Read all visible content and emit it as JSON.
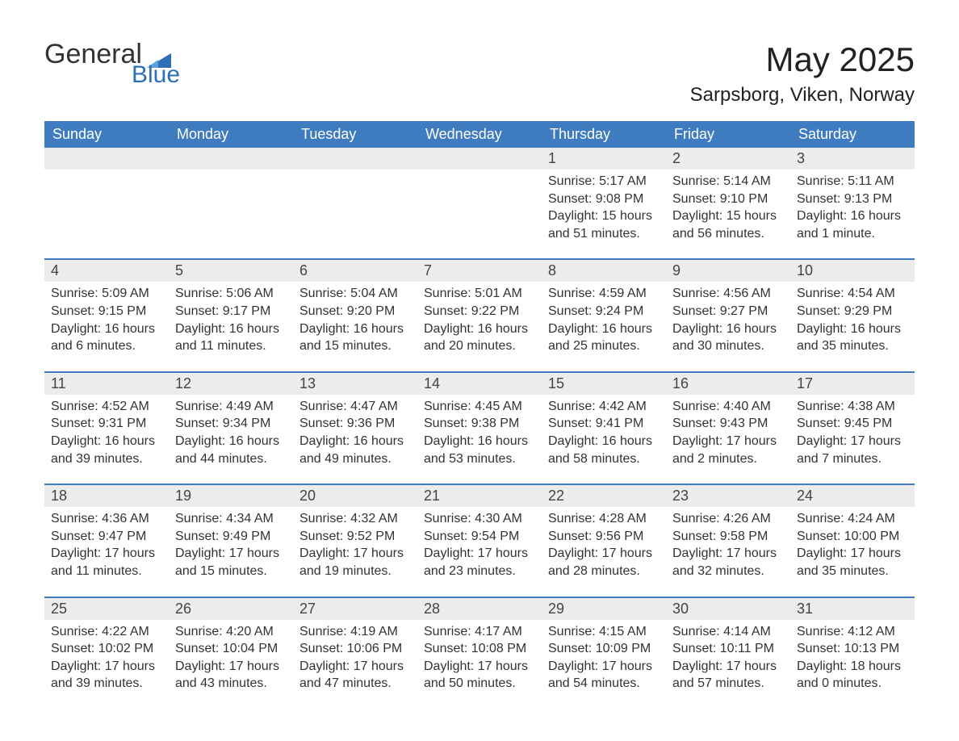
{
  "colors": {
    "header_blue": "#3f7bbf",
    "row_border_blue": "#3f7bbf",
    "day_bg": "#ececec",
    "text_dark": "#333333",
    "logo_blue": "#2f6fb5",
    "background": "#ffffff"
  },
  "logo": {
    "line1": "General",
    "line2": "Blue"
  },
  "title": {
    "month": "May 2025",
    "location": "Sarpsborg, Viken, Norway"
  },
  "weekdays": [
    "Sunday",
    "Monday",
    "Tuesday",
    "Wednesday",
    "Thursday",
    "Friday",
    "Saturday"
  ],
  "layout": {
    "first_weekday_index": 4,
    "rows": 5,
    "cols": 7
  },
  "days": [
    {
      "n": 1,
      "sunrise": "Sunrise: 5:17 AM",
      "sunset": "Sunset: 9:08 PM",
      "daylight": "Daylight: 15 hours and 51 minutes."
    },
    {
      "n": 2,
      "sunrise": "Sunrise: 5:14 AM",
      "sunset": "Sunset: 9:10 PM",
      "daylight": "Daylight: 15 hours and 56 minutes."
    },
    {
      "n": 3,
      "sunrise": "Sunrise: 5:11 AM",
      "sunset": "Sunset: 9:13 PM",
      "daylight": "Daylight: 16 hours and 1 minute."
    },
    {
      "n": 4,
      "sunrise": "Sunrise: 5:09 AM",
      "sunset": "Sunset: 9:15 PM",
      "daylight": "Daylight: 16 hours and 6 minutes."
    },
    {
      "n": 5,
      "sunrise": "Sunrise: 5:06 AM",
      "sunset": "Sunset: 9:17 PM",
      "daylight": "Daylight: 16 hours and 11 minutes."
    },
    {
      "n": 6,
      "sunrise": "Sunrise: 5:04 AM",
      "sunset": "Sunset: 9:20 PM",
      "daylight": "Daylight: 16 hours and 15 minutes."
    },
    {
      "n": 7,
      "sunrise": "Sunrise: 5:01 AM",
      "sunset": "Sunset: 9:22 PM",
      "daylight": "Daylight: 16 hours and 20 minutes."
    },
    {
      "n": 8,
      "sunrise": "Sunrise: 4:59 AM",
      "sunset": "Sunset: 9:24 PM",
      "daylight": "Daylight: 16 hours and 25 minutes."
    },
    {
      "n": 9,
      "sunrise": "Sunrise: 4:56 AM",
      "sunset": "Sunset: 9:27 PM",
      "daylight": "Daylight: 16 hours and 30 minutes."
    },
    {
      "n": 10,
      "sunrise": "Sunrise: 4:54 AM",
      "sunset": "Sunset: 9:29 PM",
      "daylight": "Daylight: 16 hours and 35 minutes."
    },
    {
      "n": 11,
      "sunrise": "Sunrise: 4:52 AM",
      "sunset": "Sunset: 9:31 PM",
      "daylight": "Daylight: 16 hours and 39 minutes."
    },
    {
      "n": 12,
      "sunrise": "Sunrise: 4:49 AM",
      "sunset": "Sunset: 9:34 PM",
      "daylight": "Daylight: 16 hours and 44 minutes."
    },
    {
      "n": 13,
      "sunrise": "Sunrise: 4:47 AM",
      "sunset": "Sunset: 9:36 PM",
      "daylight": "Daylight: 16 hours and 49 minutes."
    },
    {
      "n": 14,
      "sunrise": "Sunrise: 4:45 AM",
      "sunset": "Sunset: 9:38 PM",
      "daylight": "Daylight: 16 hours and 53 minutes."
    },
    {
      "n": 15,
      "sunrise": "Sunrise: 4:42 AM",
      "sunset": "Sunset: 9:41 PM",
      "daylight": "Daylight: 16 hours and 58 minutes."
    },
    {
      "n": 16,
      "sunrise": "Sunrise: 4:40 AM",
      "sunset": "Sunset: 9:43 PM",
      "daylight": "Daylight: 17 hours and 2 minutes."
    },
    {
      "n": 17,
      "sunrise": "Sunrise: 4:38 AM",
      "sunset": "Sunset: 9:45 PM",
      "daylight": "Daylight: 17 hours and 7 minutes."
    },
    {
      "n": 18,
      "sunrise": "Sunrise: 4:36 AM",
      "sunset": "Sunset: 9:47 PM",
      "daylight": "Daylight: 17 hours and 11 minutes."
    },
    {
      "n": 19,
      "sunrise": "Sunrise: 4:34 AM",
      "sunset": "Sunset: 9:49 PM",
      "daylight": "Daylight: 17 hours and 15 minutes."
    },
    {
      "n": 20,
      "sunrise": "Sunrise: 4:32 AM",
      "sunset": "Sunset: 9:52 PM",
      "daylight": "Daylight: 17 hours and 19 minutes."
    },
    {
      "n": 21,
      "sunrise": "Sunrise: 4:30 AM",
      "sunset": "Sunset: 9:54 PM",
      "daylight": "Daylight: 17 hours and 23 minutes."
    },
    {
      "n": 22,
      "sunrise": "Sunrise: 4:28 AM",
      "sunset": "Sunset: 9:56 PM",
      "daylight": "Daylight: 17 hours and 28 minutes."
    },
    {
      "n": 23,
      "sunrise": "Sunrise: 4:26 AM",
      "sunset": "Sunset: 9:58 PM",
      "daylight": "Daylight: 17 hours and 32 minutes."
    },
    {
      "n": 24,
      "sunrise": "Sunrise: 4:24 AM",
      "sunset": "Sunset: 10:00 PM",
      "daylight": "Daylight: 17 hours and 35 minutes."
    },
    {
      "n": 25,
      "sunrise": "Sunrise: 4:22 AM",
      "sunset": "Sunset: 10:02 PM",
      "daylight": "Daylight: 17 hours and 39 minutes."
    },
    {
      "n": 26,
      "sunrise": "Sunrise: 4:20 AM",
      "sunset": "Sunset: 10:04 PM",
      "daylight": "Daylight: 17 hours and 43 minutes."
    },
    {
      "n": 27,
      "sunrise": "Sunrise: 4:19 AM",
      "sunset": "Sunset: 10:06 PM",
      "daylight": "Daylight: 17 hours and 47 minutes."
    },
    {
      "n": 28,
      "sunrise": "Sunrise: 4:17 AM",
      "sunset": "Sunset: 10:08 PM",
      "daylight": "Daylight: 17 hours and 50 minutes."
    },
    {
      "n": 29,
      "sunrise": "Sunrise: 4:15 AM",
      "sunset": "Sunset: 10:09 PM",
      "daylight": "Daylight: 17 hours and 54 minutes."
    },
    {
      "n": 30,
      "sunrise": "Sunrise: 4:14 AM",
      "sunset": "Sunset: 10:11 PM",
      "daylight": "Daylight: 17 hours and 57 minutes."
    },
    {
      "n": 31,
      "sunrise": "Sunrise: 4:12 AM",
      "sunset": "Sunset: 10:13 PM",
      "daylight": "Daylight: 18 hours and 0 minutes."
    }
  ]
}
